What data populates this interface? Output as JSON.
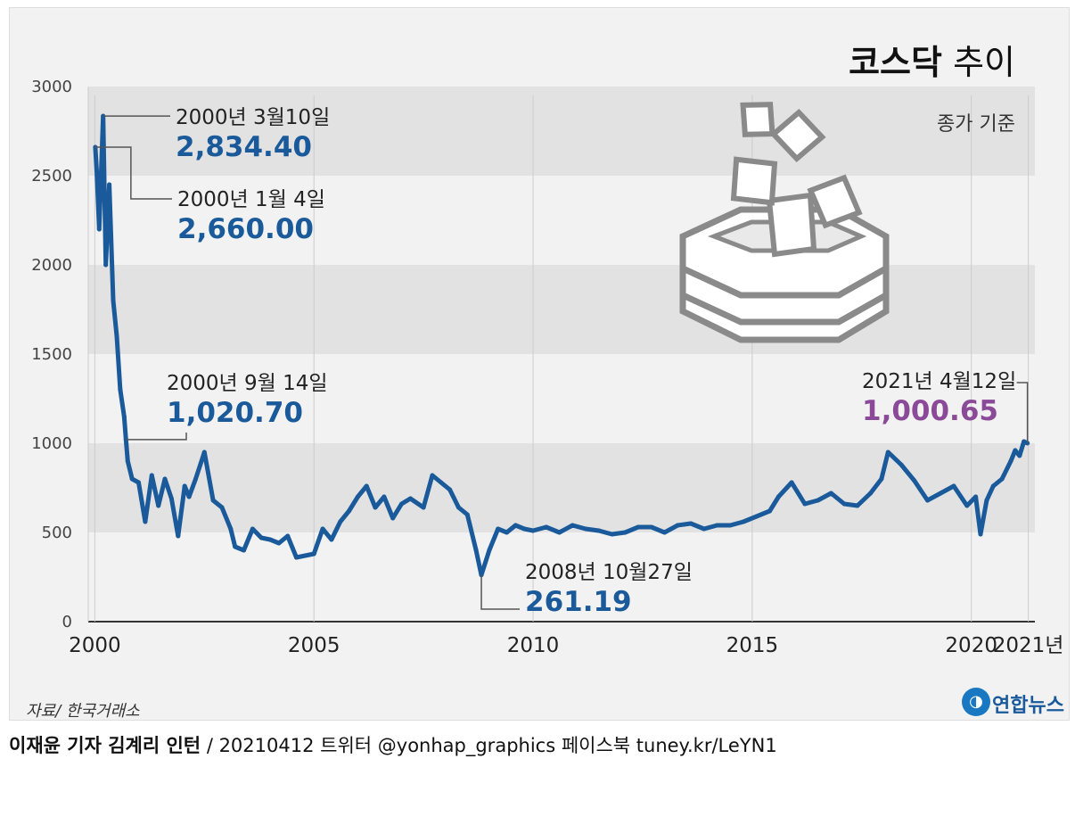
{
  "header": {
    "title_bold": "코스닥",
    "title_rest": "추이",
    "subtitle": "종가 기준"
  },
  "source": "자료/ 한국거래소",
  "logo": {
    "text": "연합뉴스"
  },
  "footer": {
    "reporter": "이재윤 기자  김계리 인턴",
    "rest": " / 20210412    트위터 @yonhap_graphics  페이스북 tuney.kr/LeYN1"
  },
  "colors": {
    "line": "#1a5a9a",
    "highlight": "#8a4a98",
    "band": "#e2e2e2",
    "background": "#f2f2f2"
  },
  "icon": "ballot-box-icon",
  "chart_data": {
    "type": "line",
    "title": "코스닥 추이",
    "subtitle": "종가 기준",
    "xlabel": "",
    "ylabel": "",
    "ylim": [
      0,
      3000
    ],
    "yticks": [
      0,
      500,
      1000,
      1500,
      2000,
      2500,
      3000
    ],
    "xticks": [
      {
        "x": 2000,
        "label": "2000"
      },
      {
        "x": 2005,
        "label": "2005"
      },
      {
        "x": 2010,
        "label": "2010"
      },
      {
        "x": 2015,
        "label": "2015"
      },
      {
        "x": 2020,
        "label": "2020"
      },
      {
        "x": 2021.3,
        "label": "2021년"
      }
    ],
    "grid": "alternating horizontal bands",
    "series": [
      {
        "color": "#1a5a9a",
        "x": [
          2000.01,
          2000.05,
          2000.1,
          2000.19,
          2000.25,
          2000.33,
          2000.42,
          2000.5,
          2000.58,
          2000.67,
          2000.71,
          2000.75,
          2000.85,
          2001.0,
          2001.15,
          2001.3,
          2001.45,
          2001.6,
          2001.75,
          2001.9,
          2002.05,
          2002.15,
          2002.3,
          2002.5,
          2002.7,
          2002.9,
          2003.1,
          2003.2,
          2003.4,
          2003.6,
          2003.8,
          2004.0,
          2004.2,
          2004.4,
          2004.6,
          2004.8,
          2005.0,
          2005.2,
          2005.4,
          2005.6,
          2005.8,
          2006.0,
          2006.2,
          2006.4,
          2006.6,
          2006.8,
          2007.0,
          2007.2,
          2007.5,
          2007.7,
          2007.9,
          2008.1,
          2008.3,
          2008.5,
          2008.7,
          2008.82,
          2009.0,
          2009.2,
          2009.4,
          2009.6,
          2009.8,
          2010.0,
          2010.3,
          2010.6,
          2010.9,
          2011.2,
          2011.5,
          2011.8,
          2012.1,
          2012.4,
          2012.7,
          2013.0,
          2013.3,
          2013.6,
          2013.9,
          2014.2,
          2014.5,
          2014.8,
          2015.1,
          2015.4,
          2015.6,
          2015.9,
          2016.2,
          2016.5,
          2016.8,
          2017.1,
          2017.4,
          2017.7,
          2017.95,
          2018.1,
          2018.4,
          2018.7,
          2019.0,
          2019.3,
          2019.6,
          2019.9,
          2020.1,
          2020.21,
          2020.35,
          2020.5,
          2020.7,
          2020.9,
          2021.0,
          2021.1,
          2021.2,
          2021.28
        ],
        "y": [
          2660.0,
          2500,
          2200,
          2834.4,
          2000,
          2450,
          1800,
          1600,
          1300,
          1150,
          1020.7,
          900,
          800,
          780,
          560,
          820,
          650,
          800,
          690,
          480,
          760,
          700,
          800,
          950,
          680,
          640,
          520,
          420,
          400,
          520,
          470,
          460,
          440,
          480,
          360,
          370,
          380,
          520,
          460,
          560,
          620,
          700,
          760,
          640,
          700,
          580,
          660,
          690,
          640,
          820,
          780,
          740,
          640,
          600,
          400,
          261.19,
          400,
          520,
          500,
          540,
          520,
          510,
          530,
          500,
          540,
          520,
          510,
          490,
          500,
          530,
          530,
          500,
          540,
          550,
          520,
          540,
          540,
          560,
          590,
          620,
          700,
          780,
          660,
          680,
          720,
          660,
          650,
          720,
          800,
          950,
          880,
          790,
          680,
          720,
          760,
          650,
          700,
          490,
          680,
          760,
          800,
          900,
          960,
          930,
          1010,
          1000.65
        ]
      }
    ],
    "annotations": [
      {
        "x": 2000.19,
        "y": 2834.4,
        "date": "2000년 3월10일",
        "value": "2,834.40",
        "color": "#1a5a9a"
      },
      {
        "x": 2000.01,
        "y": 2660.0,
        "date": "2000년 1월 4일",
        "value": "2,660.00",
        "color": "#1a5a9a"
      },
      {
        "x": 2000.71,
        "y": 1020.7,
        "date": "2000년 9월 14일",
        "value": "1,020.70",
        "color": "#1a5a9a"
      },
      {
        "x": 2008.82,
        "y": 261.19,
        "date": "2008년 10월27일",
        "value": "261.19",
        "color": "#1a5a9a"
      },
      {
        "x": 2021.28,
        "y": 1000.65,
        "date": "2021년 4월12일",
        "value": "1,000.65",
        "color": "#8a4a98"
      }
    ]
  }
}
